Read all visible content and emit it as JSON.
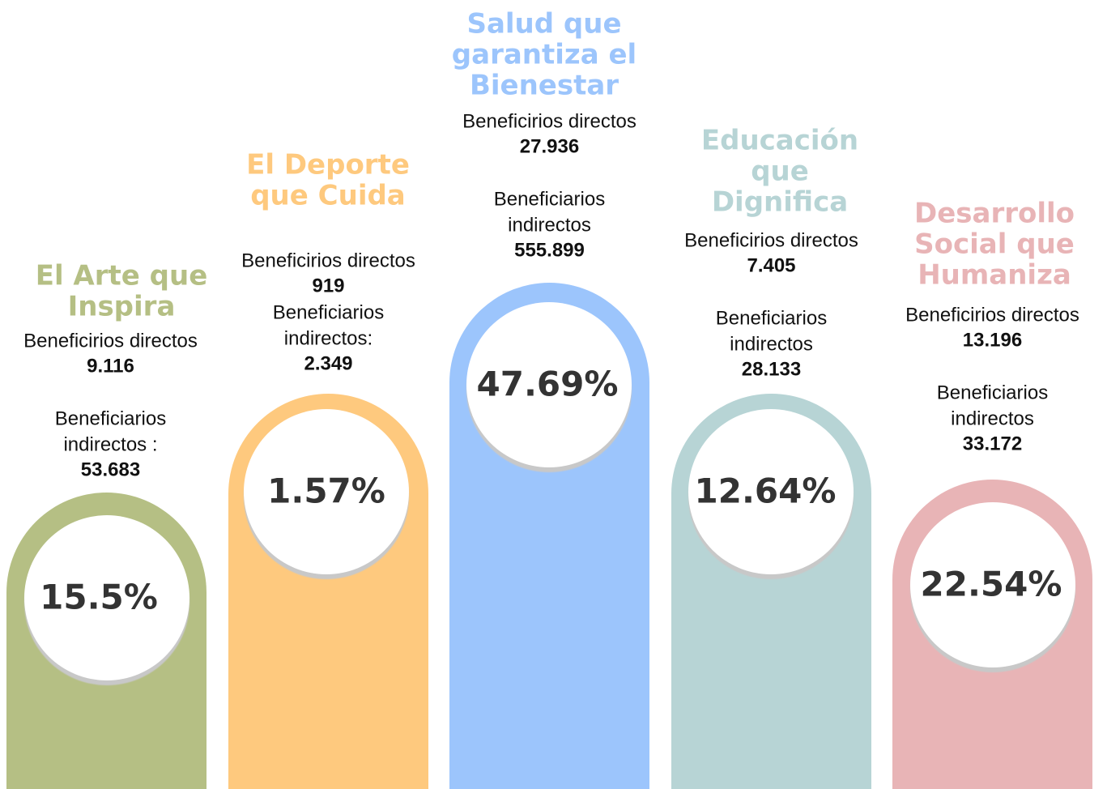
{
  "columns": [
    {
      "title": [
        "El Arte que",
        "Inspira"
      ],
      "color": "#b5bf84",
      "direct_label": "Beneficirios directos",
      "direct_value": "9.116",
      "indirect_label": [
        "Beneficiarios",
        "indirectos :"
      ],
      "indirect_value": "53.683",
      "percent": "15.5%"
    },
    {
      "title": [
        "El Deporte",
        "que Cuida"
      ],
      "color": "#fec97e",
      "direct_label": "Beneficirios directos",
      "direct_value": "919",
      "indirect_label": [
        "Beneficiarios",
        "indirectos:"
      ],
      "indirect_value": "2.349",
      "percent": "1.57%"
    },
    {
      "title": [
        "Salud que",
        "garantiza el",
        "Bienestar"
      ],
      "color": "#9cc5fc",
      "direct_label": "Beneficirios directos",
      "direct_value": "27.936",
      "indirect_label": [
        "Beneficiarios",
        "indirectos"
      ],
      "indirect_value": "555.899",
      "percent": "47.69%"
    },
    {
      "title": [
        "Educación",
        "que",
        "Dignifica"
      ],
      "color": "#b7d4d5",
      "direct_label": "Beneficirios directos",
      "direct_value": "7.405",
      "indirect_label": [
        "Beneficiarios",
        "indirectos"
      ],
      "indirect_value": "28.133",
      "percent": "12.64%"
    },
    {
      "title": [
        "Desarrollo",
        "Social que",
        "Humaniza"
      ],
      "color": "#e8b4b6",
      "direct_label": "Beneficirios directos",
      "direct_value": "13.196",
      "indirect_label": [
        "Beneficiarios",
        "indirectos"
      ],
      "indirect_value": "33.172",
      "percent": "22.54%"
    }
  ]
}
